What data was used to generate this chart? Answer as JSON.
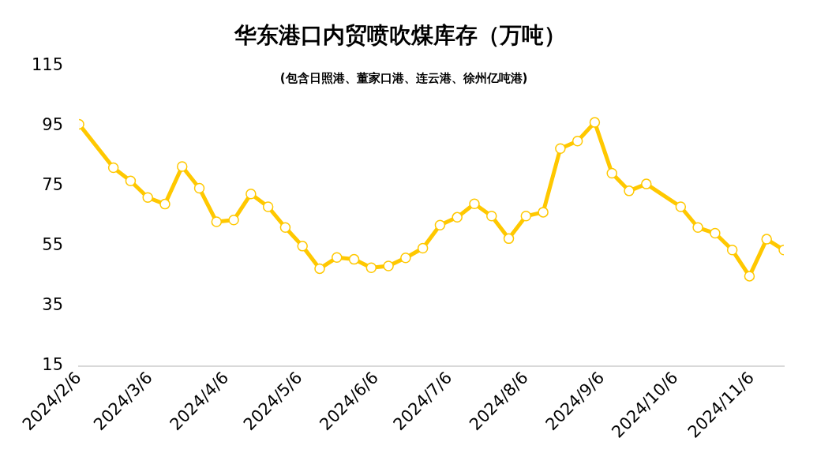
{
  "chart_data": {
    "type": "line",
    "title": "华东港口内贸喷吹煤库存（万吨）",
    "subtitle": "(包含日照港、董家口港、连云港、徐州亿吨港)",
    "x": [
      "2024-02-06",
      "2024-02-20",
      "2024-02-27",
      "2024-03-05",
      "2024-03-12",
      "2024-03-19",
      "2024-03-26",
      "2024-04-02",
      "2024-04-09",
      "2024-04-16",
      "2024-04-23",
      "2024-04-30",
      "2024-05-07",
      "2024-05-14",
      "2024-05-21",
      "2024-05-28",
      "2024-06-04",
      "2024-06-11",
      "2024-06-18",
      "2024-06-25",
      "2024-07-02",
      "2024-07-09",
      "2024-07-16",
      "2024-07-23",
      "2024-07-30",
      "2024-08-06",
      "2024-08-13",
      "2024-08-20",
      "2024-08-27",
      "2024-09-03",
      "2024-09-10",
      "2024-09-17",
      "2024-09-24",
      "2024-10-08",
      "2024-10-15",
      "2024-10-22",
      "2024-10-29",
      "2024-11-05",
      "2024-11-12",
      "2024-11-19"
    ],
    "series": [
      {
        "color": "#ffc800",
        "values": [
          95.6,
          81.1,
          76.7,
          71.2,
          69,
          81.5,
          74.3,
          63.1,
          63.7,
          72.4,
          68.1,
          61.2,
          55,
          47.5,
          51.2,
          50.6,
          47.8,
          48.4,
          51.1,
          54.3,
          62,
          64.6,
          69.1,
          65,
          57.5,
          65,
          66.3,
          87.5,
          90,
          96.2,
          79.3,
          73.4,
          75.7,
          68.1,
          61.2,
          59.3,
          53.7,
          45,
          57.3,
          53.7
        ]
      }
    ],
    "xlim": [
      "2024-02-06",
      "2024-11-19"
    ],
    "xticks": [
      {
        "value": "2024-02-06",
        "label": "2024/2/6"
      },
      {
        "value": "2024-03-06",
        "label": "2024/3/6"
      },
      {
        "value": "2024-04-06",
        "label": "2024/4/6"
      },
      {
        "value": "2024-05-06",
        "label": "2024/5/6"
      },
      {
        "value": "2024-06-06",
        "label": "2024/6/6"
      },
      {
        "value": "2024-07-06",
        "label": "2024/7/6"
      },
      {
        "value": "2024-08-06",
        "label": "2024/8/6"
      },
      {
        "value": "2024-09-06",
        "label": "2024/9/6"
      },
      {
        "value": "2024-10-06",
        "label": "2024/10/6"
      },
      {
        "value": "2024-11-06",
        "label": "2024/11/6"
      }
    ],
    "ylim": [
      15,
      115
    ],
    "yticks": [
      15,
      35,
      55,
      75,
      95,
      115
    ],
    "grid": false,
    "legend": false,
    "marker": "circle",
    "line_style": "solid"
  }
}
